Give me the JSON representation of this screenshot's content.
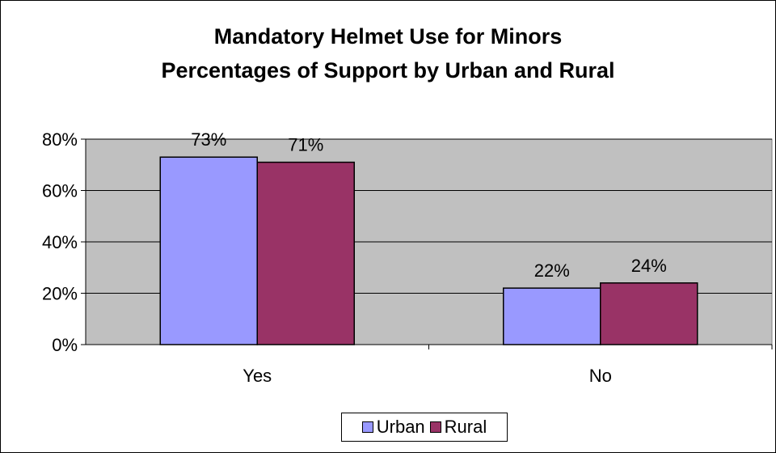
{
  "chart_data": {
    "type": "bar",
    "title": "Mandatory Helmet Use for Minors",
    "subtitle": "Percentages of Support by Urban and Rural",
    "categories": [
      "Yes",
      "No"
    ],
    "series": [
      {
        "name": "Urban",
        "values": [
          73,
          22
        ],
        "labels": [
          "73%",
          "22%"
        ],
        "color": "#9999ff"
      },
      {
        "name": "Rural",
        "values": [
          71,
          24
        ],
        "labels": [
          "71%",
          "24%"
        ],
        "color": "#993366"
      }
    ],
    "ylim": [
      0,
      80
    ],
    "yticks": [
      0,
      20,
      40,
      60,
      80
    ],
    "ytick_labels": [
      "0%",
      "20%",
      "40%",
      "60%",
      "80%"
    ],
    "xlabel": "",
    "ylabel": "",
    "grid": true,
    "plot_background": "#c0c0c0",
    "legend": "bottom-center"
  }
}
